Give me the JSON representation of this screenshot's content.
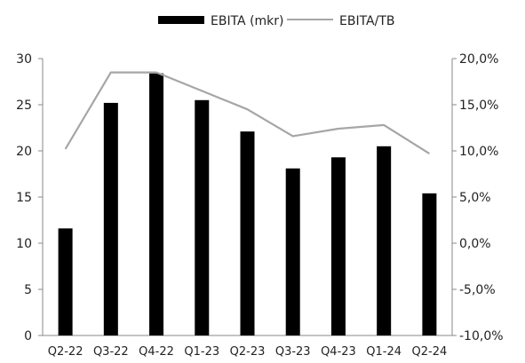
{
  "colors": {
    "bar": "#000000",
    "line": "#a6a6a6",
    "axis": "#888888",
    "text": "#222222"
  },
  "legend": {
    "bar_label": "EBITA (mkr)",
    "line_label": "EBITA/TB"
  },
  "chart_data": {
    "type": "bar",
    "title": "",
    "xlabel": "",
    "ylabel": "",
    "categories": [
      "Q2-22",
      "Q3-22",
      "Q4-22",
      "Q1-23",
      "Q2-23",
      "Q3-23",
      "Q4-23",
      "Q1-24",
      "Q2-24"
    ],
    "series": [
      {
        "name": "EBITA (mkr)",
        "type": "bar",
        "axis": "left",
        "values": [
          11.6,
          25.2,
          28.4,
          25.5,
          22.1,
          18.1,
          19.3,
          20.5,
          15.4
        ]
      },
      {
        "name": "EBITA/TB",
        "type": "line",
        "axis": "right",
        "values": [
          10.2,
          18.5,
          18.5,
          16.5,
          14.5,
          11.6,
          12.4,
          12.8,
          9.7
        ]
      }
    ],
    "ylim": [
      0,
      30
    ],
    "y_ticks": [
      "0",
      "5",
      "10",
      "15",
      "20",
      "25",
      "30"
    ],
    "y2lim": [
      -10,
      20
    ],
    "y2_ticks": [
      "-10,0%",
      "-5,0%",
      "0,0%",
      "5,0%",
      "10,0%",
      "15,0%",
      "20,0%"
    ],
    "legend_position": "top-center",
    "grid": false
  }
}
